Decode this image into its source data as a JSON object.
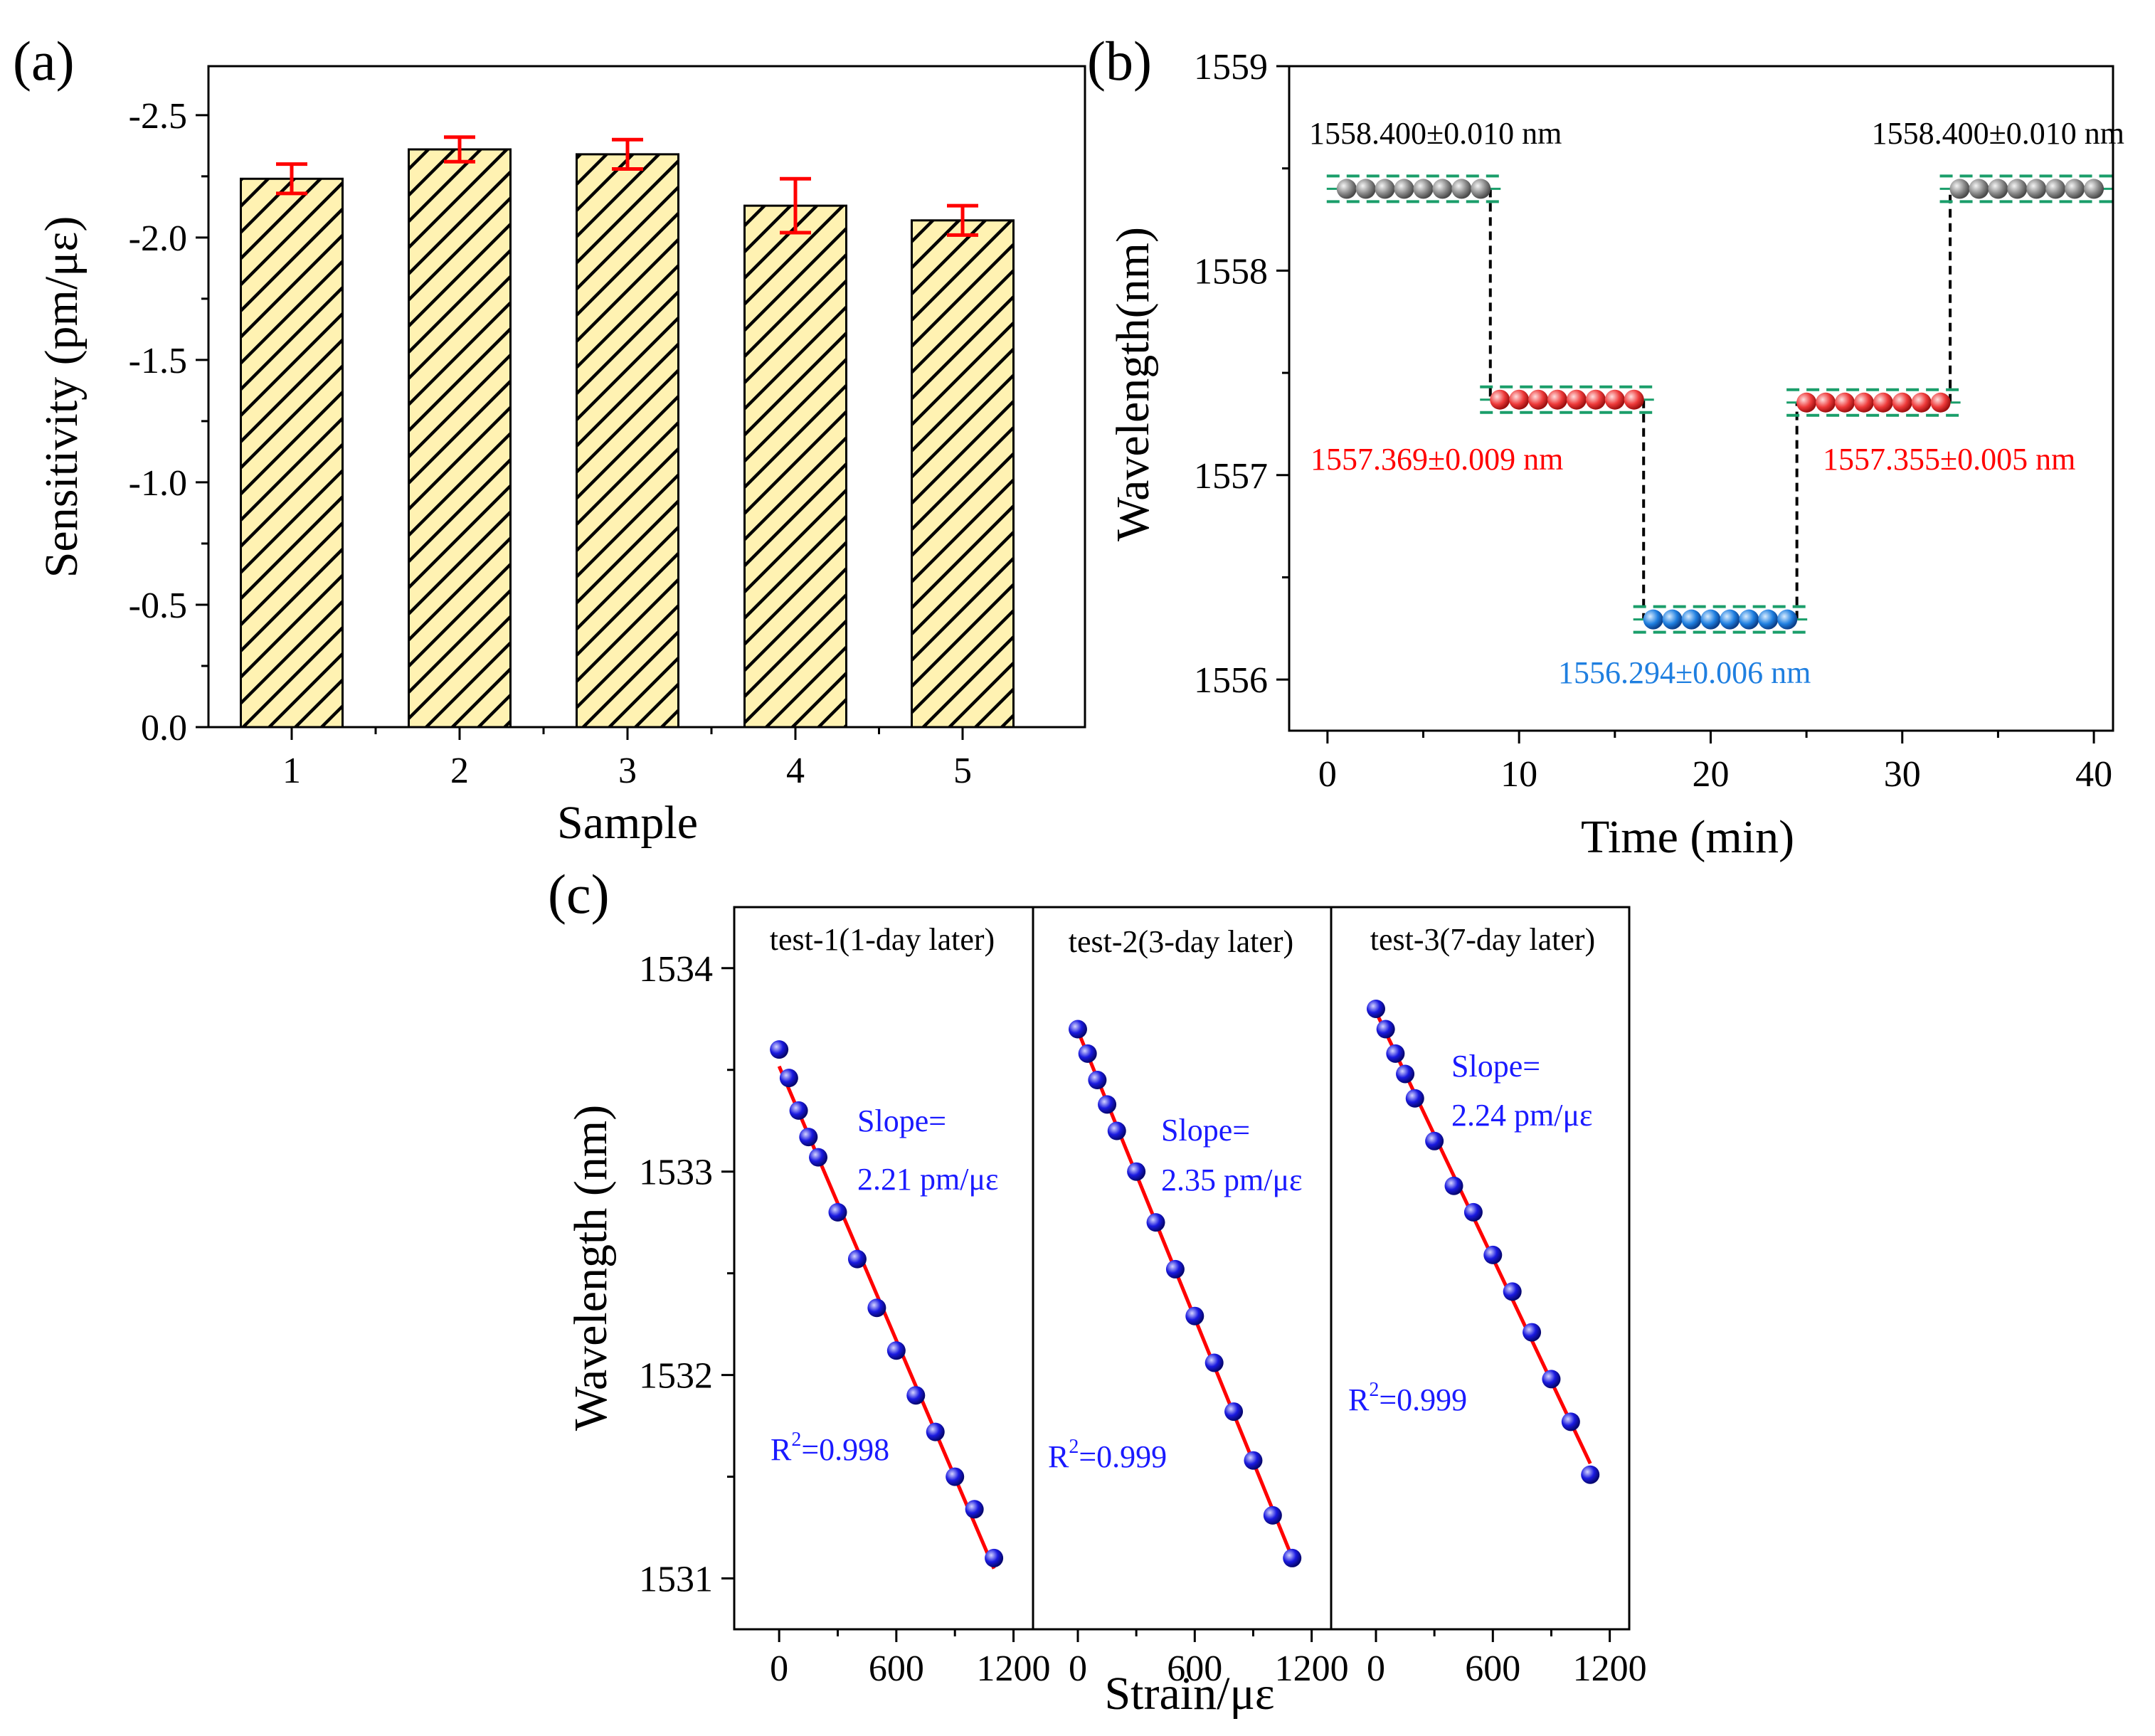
{
  "colors": {
    "bar_fill": "#fff2b2",
    "hatch": "#000000",
    "error_bar": "#ff0000",
    "level_gray": "#888888",
    "level_red": "#ff3333",
    "level_blue": "#1f7fe0",
    "band_green": "#1a9e6a",
    "fit_red": "#ff0000",
    "point_blue": "#1a1ae0",
    "text_black": "#000000",
    "text_red": "#ff0000",
    "text_blue": "#1f7fe0",
    "slope_blue": "#1a1aff"
  },
  "chart_data": [
    {
      "panel": "(a)",
      "type": "bar",
      "xlabel": "Sample",
      "ylabel": "Sensitivity (pm/με)",
      "categories": [
        "1",
        "2",
        "3",
        "4",
        "5"
      ],
      "values": [
        -2.24,
        -2.36,
        -2.34,
        -2.13,
        -2.07
      ],
      "errors": [
        0.06,
        0.05,
        0.06,
        0.11,
        0.06
      ],
      "ylim": [
        0.0,
        -2.7
      ],
      "yticks": [
        0.0,
        -0.5,
        -1.0,
        -1.5,
        -2.0,
        -2.5
      ],
      "ytick_labels": [
        "0.0",
        "-0.5",
        "-1.0",
        "-1.5",
        "-2.0",
        "-2.5"
      ],
      "grid": false
    },
    {
      "panel": "(b)",
      "type": "scatter",
      "xlabel": "Time (min)",
      "ylabel": "Wavelength(nm)",
      "xlim": [
        -2,
        41
      ],
      "ylim": [
        1555.75,
        1559
      ],
      "xticks": [
        0,
        10,
        20,
        30,
        40
      ],
      "xtick_labels": [
        "0",
        "10",
        "20",
        "30",
        "40"
      ],
      "yticks": [
        1556,
        1557,
        1558,
        1559
      ],
      "ytick_labels": [
        "1556",
        "1557",
        "1558",
        "1559"
      ],
      "levels": [
        {
          "name": "segment-1",
          "color": "gray",
          "x": [
            1,
            2,
            3,
            4,
            5,
            6,
            7,
            8
          ],
          "y": 1558.4,
          "label": "1558.400±0.010 nm",
          "band": 0.01
        },
        {
          "name": "segment-2",
          "color": "red",
          "x": [
            9,
            10,
            11,
            12,
            13,
            14,
            15,
            16
          ],
          "y": 1557.369,
          "label": "1557.369±0.009 nm",
          "band": 0.009
        },
        {
          "name": "segment-3",
          "color": "blue",
          "x": [
            17,
            18,
            19,
            20,
            21,
            22,
            23,
            24
          ],
          "y": 1556.294,
          "label": "1556.294±0.006 nm",
          "band": 0.006
        },
        {
          "name": "segment-4",
          "color": "red",
          "x": [
            25,
            26,
            27,
            28,
            29,
            30,
            31,
            32
          ],
          "y": 1557.355,
          "label": "1557.355±0.005 nm",
          "band": 0.005
        },
        {
          "name": "segment-5",
          "color": "gray",
          "x": [
            33,
            34,
            35,
            36,
            37,
            38,
            39,
            40
          ],
          "y": 1558.4,
          "label": "1558.400±0.010 nm",
          "band": 0.01
        }
      ],
      "grid": false
    },
    {
      "panel": "(c)",
      "type": "scatter",
      "xlabel": "Strain/με",
      "ylabel": "Wavelength (nm)",
      "ylim": [
        1530.75,
        1534.3
      ],
      "xlim": [
        -230,
        1300
      ],
      "yticks": [
        1531,
        1532,
        1533,
        1534
      ],
      "ytick_labels": [
        "1531",
        "1532",
        "1533",
        "1534"
      ],
      "xticks": [
        0,
        600,
        1200
      ],
      "xtick_labels": [
        "0",
        "600",
        "1200"
      ],
      "subplots": [
        {
          "title": "test-1(1-day later)",
          "slope_line1": "Slope=",
          "slope_line2": "2.21 pm/με",
          "r2_base": "R",
          "r2_sup": "2",
          "r2_value": "=0.998",
          "x": [
            0,
            50,
            100,
            150,
            200,
            300,
            400,
            500,
            600,
            700,
            800,
            900,
            1000,
            1100
          ],
          "y": [
            1533.6,
            1533.46,
            1533.3,
            1533.17,
            1533.07,
            1532.8,
            1532.57,
            1532.33,
            1532.12,
            1531.9,
            1531.72,
            1531.5,
            1531.34,
            1531.1
          ]
        },
        {
          "title": "test-2(3-day later)",
          "slope_line1": "Slope=",
          "slope_line2": "2.35 pm/με",
          "r2_base": "R",
          "r2_sup": "2",
          "r2_value": "=0.999",
          "x": [
            0,
            50,
            100,
            150,
            200,
            300,
            400,
            500,
            600,
            700,
            800,
            900,
            1000,
            1100
          ],
          "y": [
            1533.7,
            1533.58,
            1533.45,
            1533.33,
            1533.2,
            1533.0,
            1532.75,
            1532.52,
            1532.29,
            1532.06,
            1531.82,
            1531.58,
            1531.31,
            1531.1
          ]
        },
        {
          "title": "test-3(7-day later)",
          "slope_line1": "Slope=",
          "slope_line2": "2.24 pm/με",
          "r2_base": "R",
          "r2_sup": "2",
          "r2_value": "=0.999",
          "x": [
            0,
            50,
            100,
            150,
            200,
            300,
            400,
            500,
            600,
            700,
            800,
            900,
            1000,
            1100
          ],
          "y": [
            1533.8,
            1533.7,
            1533.58,
            1533.48,
            1533.36,
            1533.15,
            1532.93,
            1532.8,
            1532.59,
            1532.41,
            1532.21,
            1531.98,
            1531.77,
            1531.51
          ]
        }
      ]
    }
  ]
}
